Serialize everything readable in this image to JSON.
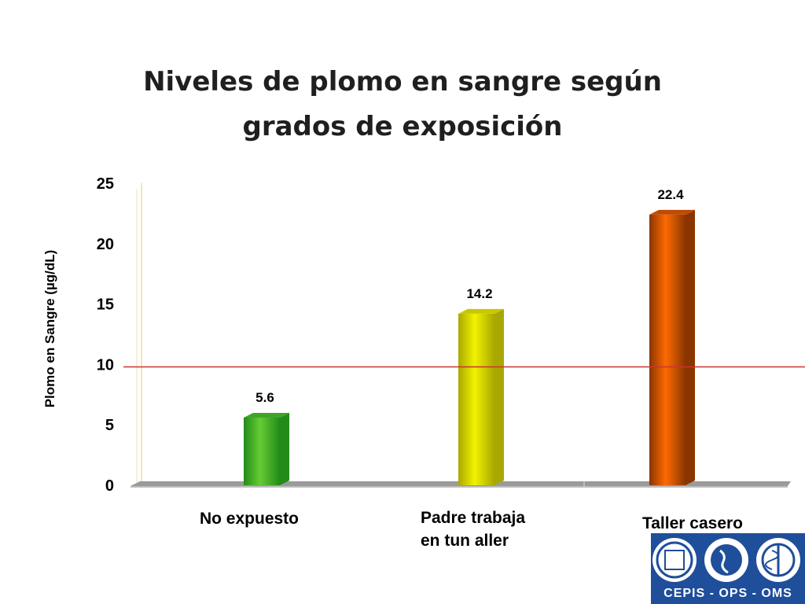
{
  "chart_data": {
    "type": "bar",
    "title": [
      "Niveles de plomo en sangre según",
      "grados de exposición"
    ],
    "ylabel": "Plomo en Sangre (µg/dL)",
    "ylim": [
      0,
      25
    ],
    "yticks": [
      0,
      5,
      10,
      15,
      20,
      25
    ],
    "categories": [
      [
        "No expuesto"
      ],
      [
        "Padre trabaja",
        "en tun aller"
      ],
      [
        "Taller casero"
      ]
    ],
    "values": [
      5.6,
      14.2,
      22.4
    ],
    "value_labels": [
      "5.6",
      "14.2",
      "22.4"
    ],
    "reference_line": {
      "value": 9.8,
      "color": "#cc3333"
    },
    "grid": false,
    "legend": "none",
    "colors": [
      {
        "front": "#66cc33",
        "side": "#228b1a",
        "top": "#3fa526"
      },
      {
        "front": "#f2f200",
        "side": "#a8a800",
        "top": "#c8c800"
      },
      {
        "front": "#ff6a00",
        "side": "#8a3500",
        "top": "#c04a00"
      }
    ]
  },
  "logo": {
    "text": "CEPIS - OPS - OMS",
    "background": "#1f4e9a",
    "icons": [
      "cepis-emblem-icon",
      "ops-globe-emblem-icon",
      "oms-who-emblem-icon"
    ]
  }
}
